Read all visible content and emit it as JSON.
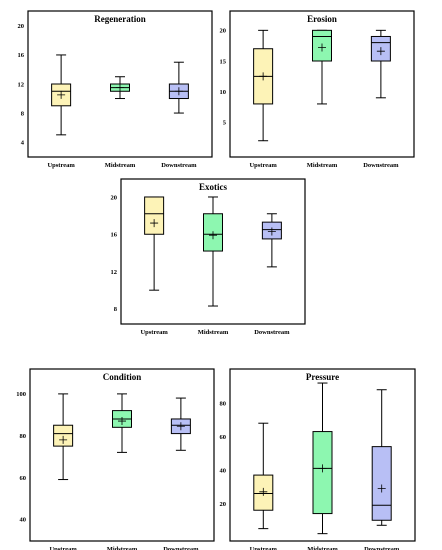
{
  "colors": {
    "upstream": "#fdf3b7",
    "midstream": "#8df7b0",
    "downstream": "#b8bff5",
    "line": "#000000"
  },
  "chart_data": [
    {
      "type": "box",
      "title": "Regeneration",
      "categories": [
        "Upstream",
        "Midstream",
        "Downstream"
      ],
      "yticks": [
        4,
        8,
        12,
        16,
        20
      ],
      "ylim": [
        2.5,
        21.5
      ],
      "boxes": [
        {
          "min": 5,
          "q1": 9,
          "median": 11,
          "q3": 12,
          "max": 16,
          "mean": 10.5
        },
        {
          "min": 10,
          "q1": 11,
          "median": 11.5,
          "q3": 12,
          "max": 13,
          "mean": 11.5
        },
        {
          "min": 8,
          "q1": 10,
          "median": 11,
          "q3": 12,
          "max": 15,
          "mean": 11
        }
      ]
    },
    {
      "type": "box",
      "title": "Erosion",
      "categories": [
        "Upstream",
        "Midstream",
        "Downstream"
      ],
      "yticks": [
        5,
        10,
        15,
        20
      ],
      "ylim": [
        0,
        22.5
      ],
      "boxes": [
        {
          "min": 2,
          "q1": 8,
          "median": 12.5,
          "q3": 17,
          "max": 20,
          "mean": 12.5
        },
        {
          "min": 8,
          "q1": 15,
          "median": 19,
          "q3": 20,
          "max": 20,
          "mean": 17.2
        },
        {
          "min": 9,
          "q1": 15,
          "median": 18,
          "q3": 19,
          "max": 20,
          "mean": 16.6
        }
      ]
    },
    {
      "type": "box",
      "title": "Exotics",
      "categories": [
        "Upstream",
        "Midstream",
        "Downstream"
      ],
      "yticks": [
        8,
        12,
        16,
        20
      ],
      "ylim": [
        6.8,
        21.5
      ],
      "boxes": [
        {
          "min": 10,
          "q1": 16,
          "median": 18.2,
          "q3": 20,
          "max": 20,
          "mean": 17.2
        },
        {
          "min": 8.3,
          "q1": 14.2,
          "median": 16,
          "q3": 18.2,
          "max": 20,
          "mean": 15.9
        },
        {
          "min": 12.5,
          "q1": 15.5,
          "median": 16.5,
          "q3": 17.3,
          "max": 18.2,
          "mean": 16.3
        }
      ]
    },
    {
      "type": "box",
      "title": "Condition",
      "categories": [
        "Upstream",
        "Midstream",
        "Downstream"
      ],
      "yticks": [
        40,
        60,
        80,
        100
      ],
      "ylim": [
        31.5,
        110
      ],
      "boxes": [
        {
          "min": 59,
          "q1": 75,
          "median": 81,
          "q3": 85,
          "max": 100,
          "mean": 78
        },
        {
          "min": 72,
          "q1": 84,
          "median": 88,
          "q3": 92,
          "max": 100,
          "mean": 87
        },
        {
          "min": 73,
          "q1": 81,
          "median": 85,
          "q3": 88,
          "max": 98,
          "mean": 84.5
        }
      ]
    },
    {
      "type": "box",
      "title": "Pressure",
      "categories": [
        "Upstream",
        "Midstream",
        "Downstream"
      ],
      "yticks": [
        20,
        40,
        60,
        80
      ],
      "ylim": [
        0,
        98
      ],
      "boxes": [
        {
          "min": 5,
          "q1": 16,
          "median": 26,
          "q3": 37,
          "max": 68,
          "mean": 27
        },
        {
          "min": 2,
          "q1": 14,
          "median": 41,
          "q3": 63,
          "max": 92,
          "mean": 41
        },
        {
          "min": 7,
          "q1": 10,
          "median": 19,
          "q3": 54,
          "max": 88,
          "mean": 29
        }
      ]
    }
  ]
}
